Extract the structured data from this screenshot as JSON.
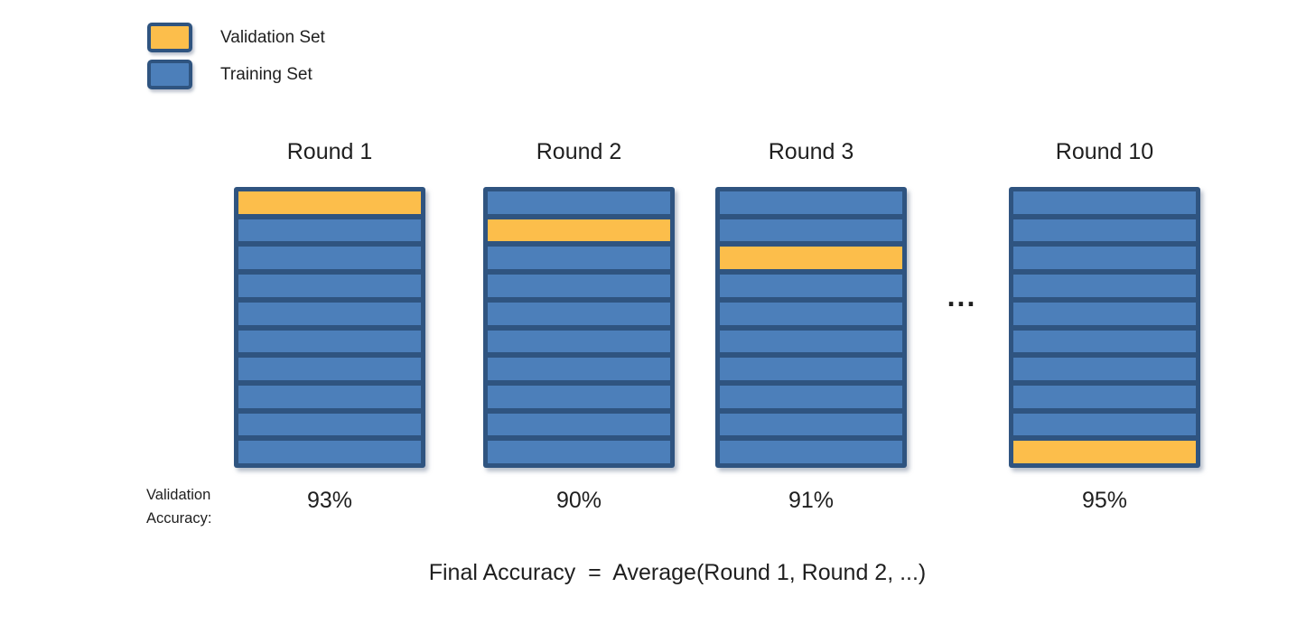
{
  "colors": {
    "validation_fill": "#FCBE4B",
    "training_fill": "#4C7FBA",
    "frame": "#2F5480",
    "text": "#1F1F1F"
  },
  "legend": {
    "validation_label": "Validation Set",
    "training_label": "Training Set"
  },
  "rounds": [
    {
      "title": "Round 1",
      "folds": 10,
      "validation_fold": 1,
      "accuracy": "93%"
    },
    {
      "title": "Round 2",
      "folds": 10,
      "validation_fold": 2,
      "accuracy": "90%"
    },
    {
      "title": "Round 3",
      "folds": 10,
      "validation_fold": 3,
      "accuracy": "91%"
    },
    {
      "title": "Round 10",
      "folds": 10,
      "validation_fold": 10,
      "accuracy": "95%"
    }
  ],
  "ellipsis": "...",
  "accuracy_caption": "Validation Accuracy:",
  "formula": "Final Accuracy  =  Average(Round 1, Round 2, ...)"
}
